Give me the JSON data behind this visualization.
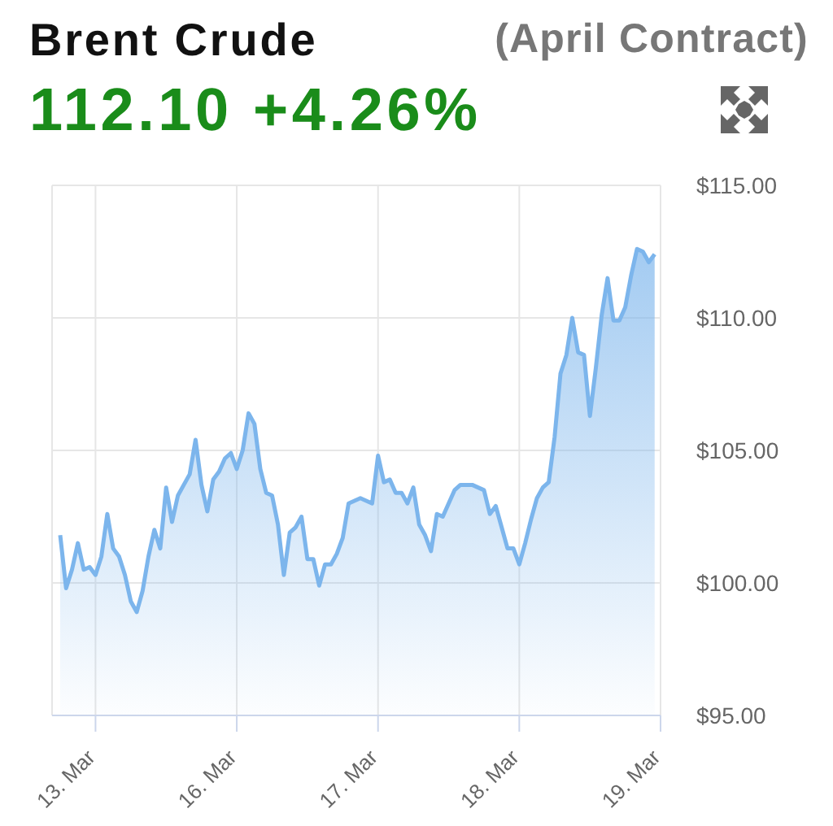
{
  "chart_data": {
    "type": "area",
    "title": "Brent Crude",
    "subtitle": "(April Contract)",
    "annotations": [
      "112.10 +4.26%"
    ],
    "categories": [
      null,
      null,
      null,
      null,
      null,
      null,
      "13. Mar",
      null,
      null,
      null,
      null,
      null,
      null,
      null,
      null,
      null,
      null,
      null,
      null,
      null,
      null,
      null,
      null,
      null,
      null,
      null,
      null,
      null,
      null,
      null,
      "16. Mar",
      null,
      null,
      null,
      null,
      null,
      null,
      null,
      null,
      null,
      null,
      null,
      null,
      null,
      null,
      null,
      null,
      null,
      null,
      null,
      null,
      null,
      null,
      null,
      "17. Mar",
      null,
      null,
      null,
      null,
      null,
      null,
      null,
      null,
      null,
      null,
      null,
      null,
      null,
      null,
      null,
      null,
      null,
      null,
      null,
      null,
      null,
      null,
      null,
      "18. Mar",
      null,
      null,
      null,
      null,
      null,
      null,
      null,
      null,
      null,
      null,
      null,
      null,
      null,
      null,
      null,
      null,
      null,
      null,
      null,
      null,
      null,
      null,
      null,
      "19. Mar"
    ],
    "series": [
      {
        "color": "#7cb5ec",
        "values": [
          101.8,
          99.8,
          100.5,
          101.5,
          100.5,
          100.6,
          100.3,
          101.0,
          102.6,
          101.3,
          101.0,
          100.3,
          99.3,
          98.9,
          99.7,
          101.0,
          102.0,
          101.3,
          103.6,
          102.3,
          103.3,
          103.7,
          104.1,
          105.4,
          103.7,
          102.7,
          103.9,
          104.2,
          104.7,
          104.9,
          104.3,
          105.0,
          106.4,
          106.0,
          104.3,
          103.4,
          103.3,
          102.2,
          100.3,
          101.9,
          102.1,
          102.5,
          100.9,
          100.9,
          99.9,
          100.7,
          100.7,
          101.1,
          101.7,
          103.0,
          103.1,
          103.2,
          103.1,
          103.0,
          104.8,
          103.8,
          103.9,
          103.4,
          103.4,
          103.0,
          103.6,
          102.2,
          101.8,
          101.2,
          102.6,
          102.5,
          103.0,
          103.5,
          103.7,
          103.7,
          103.7,
          103.6,
          103.5,
          102.6,
          102.9,
          102.1,
          101.3,
          101.3,
          100.7,
          101.5,
          102.4,
          103.2,
          103.6,
          103.8,
          105.5,
          107.9,
          108.6,
          110.0,
          108.7,
          108.6,
          106.3,
          108.1,
          110.1,
          111.5,
          109.9,
          109.9,
          110.4,
          111.6,
          112.6,
          112.5,
          112.1,
          112.4,
          null
        ]
      }
    ],
    "ylim": [
      95,
      115
    ],
    "yticks": [
      {
        "value": 95,
        "label": "$95.00"
      },
      {
        "value": 100,
        "label": "$100.00"
      },
      {
        "value": 105,
        "label": "$105.00"
      },
      {
        "value": 110,
        "label": "$110.00"
      },
      {
        "value": 115,
        "label": "$115.00"
      }
    ],
    "grid": true
  }
}
